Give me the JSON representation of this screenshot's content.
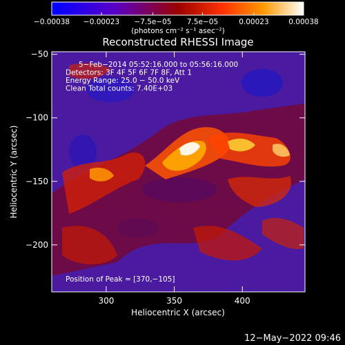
{
  "chart_data": {
    "type": "heatmap",
    "title": "Reconstructed RHESSI Image",
    "xlabel": "Heliocentric X (arcsec)",
    "ylabel": "Heliocentric Y (arcsec)",
    "xlim": [
      260,
      446
    ],
    "ylim": [
      -237,
      -48
    ],
    "x_ticks": [
      300,
      350,
      400
    ],
    "x_tick_labels": [
      "300",
      "350",
      "400"
    ],
    "y_ticks": [
      -50,
      -100,
      -150,
      -200
    ],
    "y_tick_labels": [
      "−50",
      "−100",
      "−150",
      "−200"
    ],
    "colorbar": {
      "range": [
        -0.00038,
        0.00038
      ],
      "ticks": [
        -0.00038,
        -0.00023,
        -7.5e-05,
        7.5e-05,
        0.00023,
        0.00038
      ],
      "tick_labels": [
        "−0.00038",
        "−0.00023",
        "−7.5e−05",
        "7.5e−05",
        "0.00023",
        "0.00038"
      ],
      "unit_label": "(photons cm⁻² s⁻¹ asec⁻²)",
      "colors": [
        "#0000ff",
        "#5a00c8",
        "#9a0000",
        "#ff3300",
        "#ff9900",
        "#ffffff"
      ]
    },
    "info_lines": [
      "5−Feb−2014 05:52:16.000 to 05:56:16.000",
      "Detectors: 3F 4F 5F 6F 7F 8F, Att 1",
      "Energy Range: 25.0 − 50.0 keV",
      "Clean    Total counts: 7.40E+03"
    ],
    "peak_label": "Position of Peak = [370,−105]",
    "peak": [
      370,
      -105
    ],
    "timestamp": "12−May−2022 09:46",
    "grid": false
  }
}
